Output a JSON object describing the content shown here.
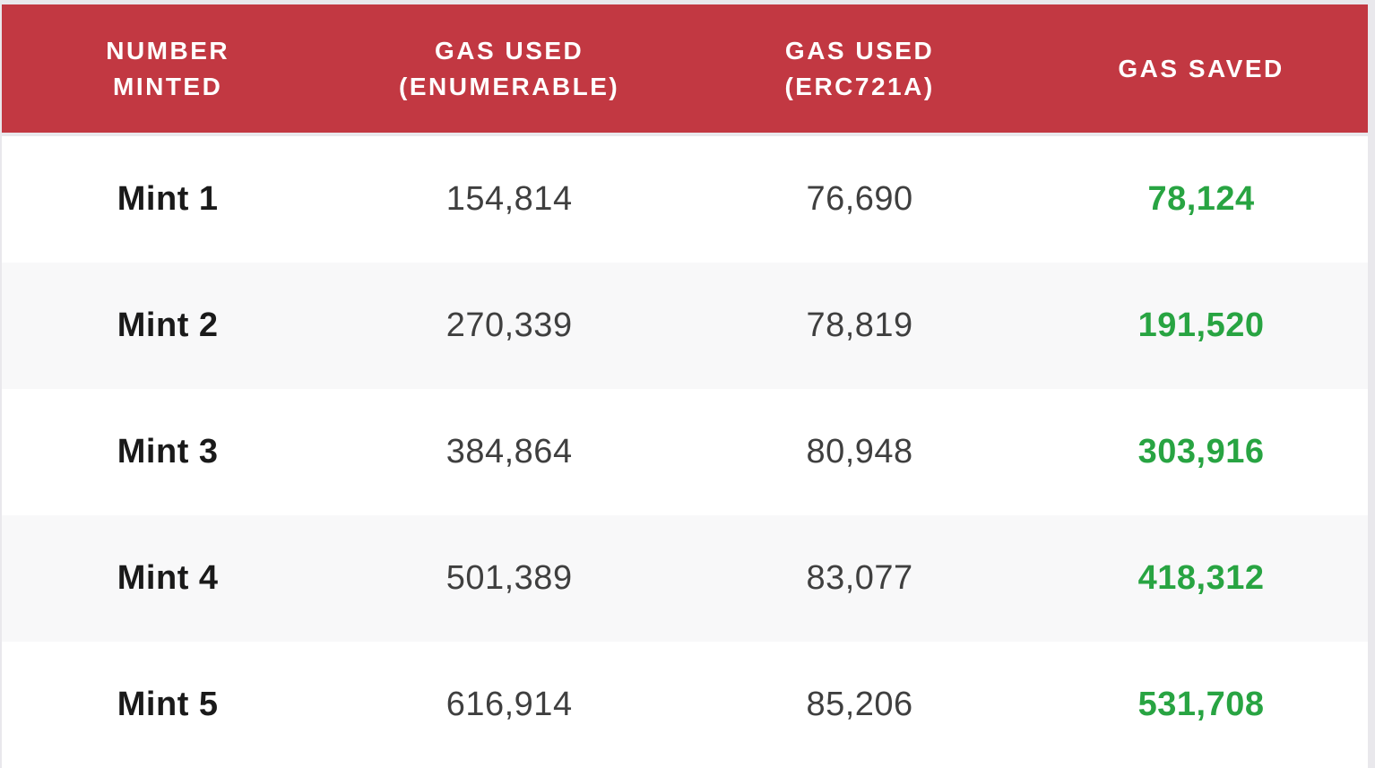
{
  "colors": {
    "frame_bg": "#e9e8ec",
    "header_bg": "#c23842",
    "header_text": "#ffffff",
    "row_bg": "#ffffff",
    "row_alt_bg": "#f8f8f9",
    "label_text": "#1a1a1a",
    "number_text": "#3f3f3f",
    "gas_saved": "#28a442"
  },
  "table": {
    "header": {
      "columns": [
        "NUMBER\nMINTED",
        "GAS USED\n(ENUMERABLE)",
        "GAS USED\n(ERC721A)",
        "GAS SAVED"
      ]
    },
    "rows": [
      [
        "Mint 1",
        "154,814",
        "76,690",
        "78,124"
      ],
      [
        "Mint 2",
        "270,339",
        "78,819",
        "191,520"
      ],
      [
        "Mint 3",
        "384,864",
        "80,948",
        "303,916"
      ],
      [
        "Mint 4",
        "501,389",
        "83,077",
        "418,312"
      ],
      [
        "Mint 5",
        "616,914",
        "85,206",
        "531,708"
      ]
    ]
  },
  "chart_data": {
    "type": "table",
    "columns": [
      "NUMBER MINTED",
      "GAS USED (ENUMERABLE)",
      "GAS USED (ERC721A)",
      "GAS SAVED"
    ],
    "rows": [
      {
        "number_minted": "Mint 1",
        "gas_used_enumerable": 154814,
        "gas_used_erc721a": 76690,
        "gas_saved": 78124
      },
      {
        "number_minted": "Mint 2",
        "gas_used_enumerable": 270339,
        "gas_used_erc721a": 78819,
        "gas_saved": 191520
      },
      {
        "number_minted": "Mint 3",
        "gas_used_enumerable": 384864,
        "gas_used_erc721a": 80948,
        "gas_saved": 303916
      },
      {
        "number_minted": "Mint 4",
        "gas_used_enumerable": 501389,
        "gas_used_erc721a": 83077,
        "gas_saved": 418312
      },
      {
        "number_minted": "Mint 5",
        "gas_used_enumerable": 616914,
        "gas_used_erc721a": 85206,
        "gas_saved": 531708
      }
    ],
    "notes": "Gas saved values rendered in green; header rendered white on red"
  }
}
